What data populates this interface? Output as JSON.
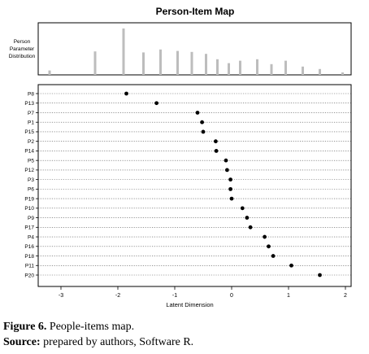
{
  "chart_data": {
    "type": "scatter",
    "title": "Person-Item Map",
    "histogram_label": [
      "Person",
      "Parameter",
      "Distribution"
    ],
    "histogram_values": [
      0.09,
      0.48,
      0.0,
      0.95,
      0.0,
      0.46,
      0.52,
      0.49,
      0.47,
      0.43,
      0.32,
      0.24,
      0.29,
      0.32,
      0.22,
      0.29,
      0.17,
      0.12,
      0.05
    ],
    "histogram_x": [
      -3.2,
      -2.4,
      -2.15,
      -1.9,
      -1.65,
      -1.55,
      -1.25,
      -0.95,
      -0.7,
      -0.45,
      -0.25,
      -0.05,
      0.15,
      0.45,
      0.7,
      0.95,
      1.25,
      1.55,
      1.95
    ],
    "xlabel": "Latent Dimension",
    "xlim": [
      -3.4,
      2.1
    ],
    "xticks": [
      -3,
      -2,
      -1,
      0,
      1,
      2
    ],
    "xtick_labels": [
      "-3",
      "-2",
      "-1",
      "0",
      "1",
      "2"
    ],
    "items": [
      "P8",
      "P13",
      "P7",
      "P1",
      "P15",
      "P2",
      "P14",
      "P5",
      "P12",
      "P3",
      "P6",
      "P19",
      "P10",
      "P9",
      "P17",
      "P4",
      "P16",
      "P18",
      "P11",
      "P20"
    ],
    "values": [
      -1.85,
      -1.32,
      -0.6,
      -0.52,
      -0.5,
      -0.28,
      -0.27,
      -0.1,
      -0.08,
      -0.02,
      -0.02,
      0.0,
      0.19,
      0.27,
      0.33,
      0.58,
      0.65,
      0.73,
      1.05,
      1.55
    ]
  },
  "caption": {
    "fig_label": "Figure 6.",
    "fig_text": " People-items map.",
    "source_label": "Source:",
    "source_text": " prepared by authors, Software R."
  }
}
